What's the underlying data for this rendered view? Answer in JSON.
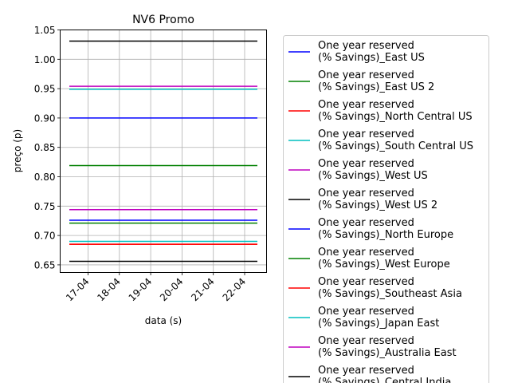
{
  "chart_data": {
    "type": "line",
    "title": "NV6 Promo",
    "xlabel": "data (s)",
    "ylabel": "preço (p)",
    "x_ticks": [
      "17-04",
      "18-04",
      "19-04",
      "20-04",
      "21-04",
      "22-04"
    ],
    "x_range": [
      "16-04 (partial)",
      "22-04 (partial)"
    ],
    "ylim": [
      0.637,
      1.05
    ],
    "y_ticks": [
      0.65,
      0.7,
      0.75,
      0.8,
      0.85,
      0.9,
      0.95,
      1.0,
      1.05
    ],
    "grid": true,
    "legend_position": "right",
    "series": [
      {
        "name": "One year reserved\n(% Savings)_East US",
        "color": "#0000ff",
        "values": [
          0.9,
          0.9
        ]
      },
      {
        "name": "One year reserved\n(% Savings)_East US 2",
        "color": "#008000",
        "values": [
          0.819,
          0.819
        ]
      },
      {
        "name": "One year reserved\n(% Savings)_North Central US",
        "color": "#ff0000",
        "values": [
          0.685,
          0.685
        ]
      },
      {
        "name": "One year reserved\n(% Savings)_South Central US",
        "color": "#00bfbf",
        "values": [
          0.949,
          0.949
        ]
      },
      {
        "name": "One year reserved\n(% Savings)_West US",
        "color": "#bf00bf",
        "values": [
          0.954,
          0.954
        ]
      },
      {
        "name": "One year reserved\n(% Savings)_West US 2",
        "color": "#000000",
        "values": [
          1.031,
          1.031
        ]
      },
      {
        "name": "One year reserved\n(% Savings)_North Europe",
        "color": "#0000ff",
        "values": [
          0.726,
          0.726
        ]
      },
      {
        "name": "One year reserved\n(% Savings)_West Europe",
        "color": "#008000",
        "values": [
          0.721,
          0.721
        ]
      },
      {
        "name": "One year reserved\n(% Savings)_Southeast Asia",
        "color": "#ff0000",
        "values": [
          0.685,
          0.685
        ]
      },
      {
        "name": "One year reserved\n(% Savings)_Japan East",
        "color": "#00bfbf",
        "values": [
          0.69,
          0.69
        ]
      },
      {
        "name": "One year reserved\n(% Savings)_Australia East",
        "color": "#bf00bf",
        "values": [
          0.744,
          0.744
        ]
      },
      {
        "name": "One year reserved\n(% Savings)_Central India",
        "color": "#000000",
        "values": [
          0.656,
          0.656
        ]
      }
    ]
  }
}
